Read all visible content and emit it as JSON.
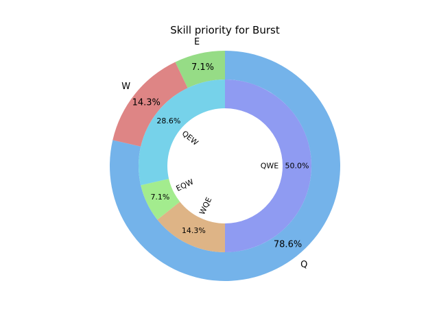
{
  "chart_data": {
    "type": "pie",
    "title": "Skill priority for Burst",
    "outer_ring": {
      "labels": [
        "Q",
        "W",
        "E"
      ],
      "values": [
        78.6,
        14.3,
        7.1
      ],
      "percent_labels": [
        "78.6%",
        "14.3%",
        "7.1%"
      ],
      "colors": [
        "#74b3ea",
        "#de8585",
        "#96dc86"
      ]
    },
    "inner_ring": {
      "labels": [
        "QWE",
        "WQE",
        "EQW",
        "QEW"
      ],
      "values": [
        50.0,
        14.3,
        7.1,
        28.6
      ],
      "percent_labels": [
        "50.0%",
        "14.3%",
        "7.1%",
        "28.6%"
      ],
      "colors": [
        "#8f9bf2",
        "#deb486",
        "#a3ec8e",
        "#76d2ea"
      ]
    },
    "start_angle_deg": 90,
    "direction": "clockwise"
  }
}
